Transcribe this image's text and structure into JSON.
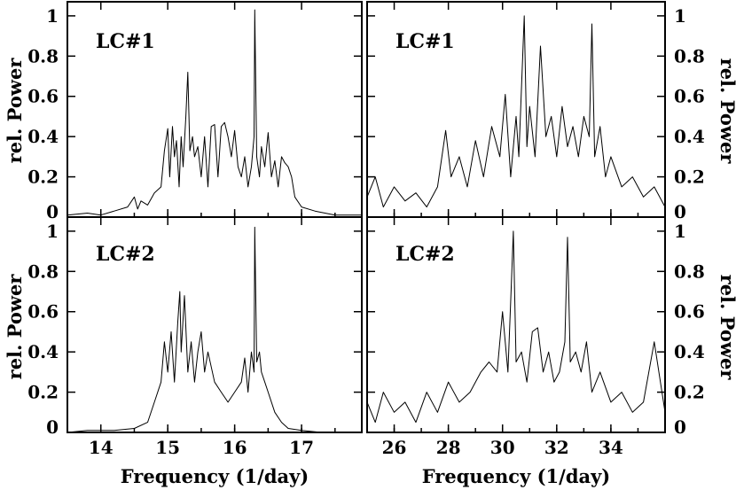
{
  "chart_data": [
    {
      "id": "top-left",
      "type": "line",
      "panel_label": "LC#1",
      "ylabel": "rel. Power",
      "xlabel": "",
      "xlim": [
        13.5,
        17.9
      ],
      "ylim": [
        0,
        1.07
      ],
      "xticks": [
        14,
        15,
        16,
        17
      ],
      "xtick_labels": [
        "",
        "",
        "",
        ""
      ],
      "yticks": [
        0,
        0.2,
        0.4,
        0.6,
        0.8,
        1
      ],
      "ytick_labels": [
        "0",
        "0.2",
        "0.4",
        "0.6",
        "0.8",
        "1"
      ],
      "ytick_side": "left",
      "series": [
        {
          "x": [
            13.5,
            13.8,
            14.0,
            14.2,
            14.4,
            14.5,
            14.55,
            14.6,
            14.7,
            14.8,
            14.9,
            14.95,
            15.0,
            15.03,
            15.07,
            15.1,
            15.13,
            15.17,
            15.2,
            15.23,
            15.27,
            15.3,
            15.33,
            15.37,
            15.4,
            15.45,
            15.5,
            15.55,
            15.6,
            15.65,
            15.7,
            15.75,
            15.8,
            15.85,
            15.9,
            15.95,
            16.0,
            16.05,
            16.1,
            16.15,
            16.2,
            16.25,
            16.29,
            16.3,
            16.33,
            16.37,
            16.4,
            16.45,
            16.5,
            16.55,
            16.6,
            16.65,
            16.7,
            16.75,
            16.8,
            16.85,
            16.9,
            17.0,
            17.2,
            17.5,
            17.9
          ],
          "y": [
            0.01,
            0.02,
            0.01,
            0.03,
            0.05,
            0.1,
            0.04,
            0.08,
            0.06,
            0.12,
            0.15,
            0.33,
            0.44,
            0.2,
            0.45,
            0.3,
            0.38,
            0.15,
            0.4,
            0.25,
            0.5,
            0.72,
            0.33,
            0.4,
            0.3,
            0.35,
            0.2,
            0.4,
            0.15,
            0.45,
            0.46,
            0.2,
            0.45,
            0.47,
            0.4,
            0.3,
            0.43,
            0.25,
            0.2,
            0.3,
            0.15,
            0.25,
            0.4,
            1.03,
            0.3,
            0.2,
            0.35,
            0.25,
            0.42,
            0.2,
            0.28,
            0.15,
            0.3,
            0.27,
            0.25,
            0.2,
            0.1,
            0.05,
            0.03,
            0.01,
            0.01
          ]
        }
      ]
    },
    {
      "id": "top-right",
      "type": "line",
      "panel_label": "LC#1",
      "ylabel": "rel. Power",
      "xlabel": "",
      "xlim": [
        25,
        36
      ],
      "ylim": [
        0,
        1.07
      ],
      "xticks": [
        26,
        28,
        30,
        32,
        34
      ],
      "xtick_labels": [
        "",
        "",
        "",
        "",
        ""
      ],
      "yticks": [
        0,
        0.2,
        0.4,
        0.6,
        0.8,
        1
      ],
      "ytick_labels": [
        "0",
        "0.2",
        "0.4",
        "0.6",
        "0.8",
        "1"
      ],
      "ytick_side": "right",
      "series": [
        {
          "x": [
            25.0,
            25.3,
            25.6,
            26.0,
            26.4,
            26.8,
            27.2,
            27.6,
            27.9,
            28.1,
            28.4,
            28.7,
            29.0,
            29.3,
            29.6,
            29.9,
            30.1,
            30.3,
            30.5,
            30.6,
            30.8,
            30.9,
            31.0,
            31.2,
            31.4,
            31.6,
            31.8,
            32.0,
            32.2,
            32.4,
            32.6,
            32.8,
            33.0,
            33.2,
            33.3,
            33.4,
            33.6,
            33.8,
            34.0,
            34.4,
            34.8,
            35.2,
            35.6,
            36.0
          ],
          "y": [
            0.1,
            0.2,
            0.05,
            0.15,
            0.08,
            0.12,
            0.05,
            0.15,
            0.43,
            0.2,
            0.3,
            0.15,
            0.38,
            0.2,
            0.45,
            0.3,
            0.61,
            0.2,
            0.5,
            0.3,
            1.0,
            0.35,
            0.55,
            0.3,
            0.85,
            0.4,
            0.5,
            0.3,
            0.55,
            0.35,
            0.45,
            0.3,
            0.5,
            0.4,
            0.96,
            0.3,
            0.45,
            0.2,
            0.3,
            0.15,
            0.2,
            0.1,
            0.15,
            0.05
          ]
        }
      ]
    },
    {
      "id": "bottom-left",
      "type": "line",
      "panel_label": "LC#2",
      "ylabel": "rel. Power",
      "xlabel": "Frequency (1/day)",
      "xlim": [
        13.5,
        17.9
      ],
      "ylim": [
        0,
        1.07
      ],
      "xticks": [
        14,
        15,
        16,
        17
      ],
      "xtick_labels": [
        "14",
        "15",
        "16",
        "17"
      ],
      "yticks": [
        0,
        0.2,
        0.4,
        0.6,
        0.8,
        1
      ],
      "ytick_labels": [
        "0",
        "0.2",
        "0.4",
        "0.6",
        "0.8",
        "1"
      ],
      "ytick_side": "left",
      "series": [
        {
          "x": [
            13.5,
            13.8,
            14.2,
            14.5,
            14.7,
            14.8,
            14.9,
            14.95,
            15.0,
            15.05,
            15.1,
            15.15,
            15.18,
            15.2,
            15.25,
            15.3,
            15.35,
            15.4,
            15.45,
            15.5,
            15.55,
            15.6,
            15.7,
            15.8,
            15.9,
            16.0,
            16.1,
            16.15,
            16.2,
            16.25,
            16.29,
            16.3,
            16.33,
            16.37,
            16.4,
            16.45,
            16.5,
            16.6,
            16.7,
            16.8,
            17.0,
            17.3,
            17.9
          ],
          "y": [
            0.0,
            0.01,
            0.01,
            0.02,
            0.05,
            0.15,
            0.25,
            0.45,
            0.3,
            0.5,
            0.25,
            0.55,
            0.7,
            0.4,
            0.68,
            0.3,
            0.45,
            0.25,
            0.4,
            0.5,
            0.3,
            0.4,
            0.25,
            0.2,
            0.15,
            0.2,
            0.25,
            0.37,
            0.2,
            0.4,
            0.3,
            1.02,
            0.35,
            0.4,
            0.3,
            0.25,
            0.2,
            0.1,
            0.05,
            0.02,
            0.01,
            0.0,
            0.0
          ]
        }
      ]
    },
    {
      "id": "bottom-right",
      "type": "line",
      "panel_label": "LC#2",
      "ylabel": "rel. Power",
      "xlabel": "Frequency (1/day)",
      "xlim": [
        25,
        36
      ],
      "ylim": [
        0,
        1.07
      ],
      "xticks": [
        26,
        28,
        30,
        32,
        34
      ],
      "xtick_labels": [
        "26",
        "28",
        "30",
        "32",
        "34"
      ],
      "yticks": [
        0,
        0.2,
        0.4,
        0.6,
        0.8,
        1
      ],
      "ytick_labels": [
        "0",
        "0.2",
        "0.4",
        "0.6",
        "0.8",
        "1"
      ],
      "ytick_side": "right",
      "series": [
        {
          "x": [
            25.0,
            25.3,
            25.6,
            26.0,
            26.4,
            26.8,
            27.2,
            27.6,
            28.0,
            28.4,
            28.8,
            29.2,
            29.5,
            29.8,
            30.0,
            30.2,
            30.3,
            30.4,
            30.5,
            30.7,
            30.9,
            31.1,
            31.3,
            31.5,
            31.7,
            31.9,
            32.1,
            32.3,
            32.4,
            32.5,
            32.7,
            32.9,
            33.1,
            33.3,
            33.6,
            34.0,
            34.4,
            34.8,
            35.2,
            35.6,
            36.0
          ],
          "y": [
            0.15,
            0.05,
            0.2,
            0.1,
            0.15,
            0.05,
            0.2,
            0.1,
            0.25,
            0.15,
            0.2,
            0.3,
            0.35,
            0.3,
            0.6,
            0.3,
            0.65,
            1.0,
            0.35,
            0.4,
            0.25,
            0.5,
            0.52,
            0.3,
            0.4,
            0.25,
            0.3,
            0.45,
            0.97,
            0.35,
            0.4,
            0.3,
            0.45,
            0.2,
            0.3,
            0.15,
            0.2,
            0.1,
            0.15,
            0.45,
            0.1
          ]
        }
      ]
    }
  ]
}
